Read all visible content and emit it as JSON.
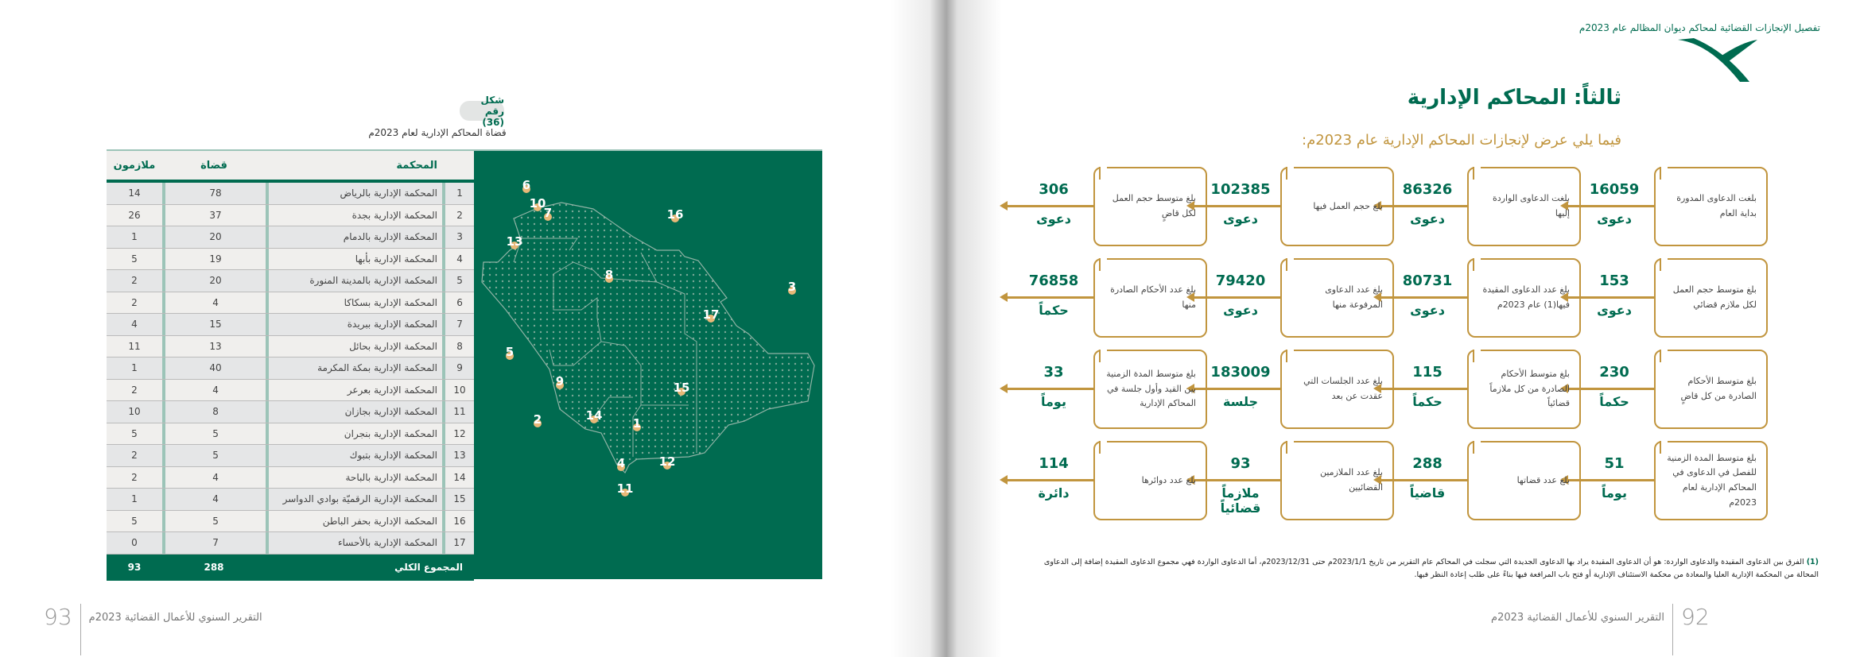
{
  "left_page": {
    "figure_label": "شكل رقم (36)",
    "figure_caption": "قضاة المحاكم الإدارية لعام 2023م",
    "table": {
      "headers": [
        "",
        "المحكمة",
        "قضاة",
        "ملازمون"
      ],
      "rows": [
        [
          "1",
          "المحكمة الإدارية بالرياض",
          "78",
          "14"
        ],
        [
          "2",
          "المحكمة الإدارية بجدة",
          "37",
          "26"
        ],
        [
          "3",
          "المحكمة الإدارية بالدمام",
          "20",
          "1"
        ],
        [
          "4",
          "المحكمة الإدارية بأبها",
          "19",
          "5"
        ],
        [
          "5",
          "المحكمة الإدارية بالمدينة المنورة",
          "20",
          "2"
        ],
        [
          "6",
          "المحكمة الإدارية بسكاكا",
          "4",
          "2"
        ],
        [
          "7",
          "المحكمة الإدارية ببريدة",
          "15",
          "4"
        ],
        [
          "8",
          "المحكمة الإدارية بحائل",
          "13",
          "11"
        ],
        [
          "9",
          "المحكمة الإدارية بمكة المكرمة",
          "40",
          "1"
        ],
        [
          "10",
          "المحكمة الإدارية بعرعر",
          "4",
          "2"
        ],
        [
          "11",
          "المحكمة الإدارية بجازان",
          "8",
          "10"
        ],
        [
          "12",
          "المحكمة الإدارية بنجران",
          "5",
          "5"
        ],
        [
          "13",
          "المحكمة الإدارية بتبوك",
          "5",
          "2"
        ],
        [
          "14",
          "المحكمة الإدارية بالباحة",
          "4",
          "2"
        ],
        [
          "15",
          "المحكمة الإدارية الرقميّة بوادي الدواسر",
          "4",
          "1"
        ],
        [
          "16",
          "المحكمة الإدارية بحفر الباطن",
          "5",
          "5"
        ],
        [
          "17",
          "المحكمة الإدارية بالأحساء",
          "7",
          "0"
        ]
      ],
      "total": {
        "label": "المجموع الكلي",
        "judges": "288",
        "assistants": "93"
      }
    },
    "map_labels": [
      "1",
      "2",
      "3",
      "4",
      "5",
      "6",
      "7",
      "8",
      "9",
      "10",
      "11",
      "12",
      "13",
      "14",
      "15",
      "16",
      "17"
    ],
    "footer": {
      "page_number": "93",
      "text": "التقرير السنوي للأعمال القضائية 2023م"
    }
  },
  "right_page": {
    "header": "تفصيل الإنجازات القضائية لمحاكم ديوان المظالم عام 2023م",
    "title": "ثالثاً: المحاكم الإدارية",
    "subtitle": "فيما يلي عرض لإنجازات المحاكم الإدارية عام 2023م:",
    "stats": [
      [
        {
          "text": "بلغت الدعاوى المدورة بداية العام",
          "value": "16059",
          "unit": "دعوى"
        },
        {
          "text": "بلغت الدعاوى الواردة إليها",
          "value": "86326",
          "unit": "دعوى"
        },
        {
          "text": "بلغ حجم العمل فيها",
          "value": "102385",
          "unit": "دعوى"
        },
        {
          "text": "بلغ متوسط حجم العمل لكل قاضٍ",
          "value": "306",
          "unit": "دعوى"
        }
      ],
      [
        {
          "text": "بلغ متوسط حجم العمل لكل ملازم قضائي",
          "value": "153",
          "unit": "دعوى"
        },
        {
          "text": "بلغ عدد الدعاوى المقيدة فيها(1) عام 2023م",
          "value": "80731",
          "unit": "دعوى"
        },
        {
          "text": "بلغ عدد الدعاوى المرفوعة منها",
          "value": "79420",
          "unit": "دعوى"
        },
        {
          "text": "بلغ عدد الأحكام الصادرة منها",
          "value": "76858",
          "unit": "حكماً"
        }
      ],
      [
        {
          "text": "بلغ متوسط الأحكام الصادرة من كل قاضٍ",
          "value": "230",
          "unit": "حكماً"
        },
        {
          "text": "بلغ متوسط الأحكام الصادرة من كل ملازماً قضائياً",
          "value": "115",
          "unit": "حكماً"
        },
        {
          "text": "بلغ عدد الجلسات التي عقدت عن بعد",
          "value": "183009",
          "unit": "جلسة"
        },
        {
          "text": "بلغ متوسط المدة الزمنية بين القيد وأول جلسة في المحاكم الإدارية",
          "value": "33",
          "unit": "يوماً"
        }
      ],
      [
        {
          "text": "بلغ متوسط المدة الزمنية للفصل في الدعاوى في المحاكم الإدارية لعام 2023م",
          "value": "51",
          "unit": "يوماً"
        },
        {
          "text": "بلغ عدد قضاتها",
          "value": "288",
          "unit": "قاضياً"
        },
        {
          "text": "بلغ عدد الملازمين القضائيين",
          "value": "93",
          "unit": "ملازماً قضائياً"
        },
        {
          "text": "بلغ عدد دوائرها",
          "value": "114",
          "unit": "دائرة"
        }
      ]
    ],
    "footnote_marker": "(1)",
    "footnote": "الفرق بين الدعاوى المقيدة والدعاوى الواردة: هو أن الدعاوى المقيدة يراد بها الدعاوى الجديدة التي سجلت في المحاكم عام التقرير من تاريخ 2023/1/1م حتى 2023/12/31م، أما الدعاوى الواردة فهي مجموع الدعاوى المقيدة إضافة إلى الدعاوى المحالة من المحكمة الإدارية العليا والمعادة من محكمة الاستئناف الإدارية أو فتح باب المرافعة فيها بناءً على طلب إعادة النظر فيها.",
    "footer": {
      "page_number": "92",
      "text": "التقرير السنوي للأعمال القضائية 2023م"
    }
  },
  "colors": {
    "green": "#006b50",
    "gold": "#c1953e",
    "marker": "#e8b878"
  }
}
